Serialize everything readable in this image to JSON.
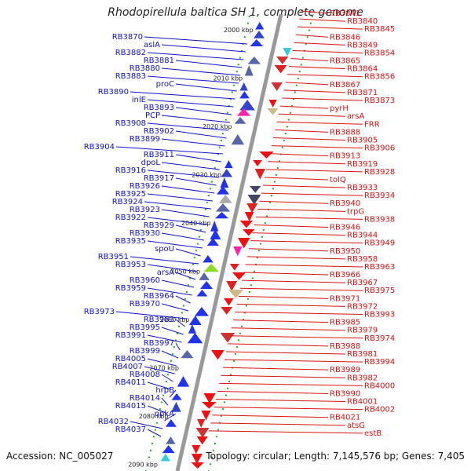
{
  "title": "Rhodopirellula baltica SH 1, complete genome",
  "footer": {
    "accession": "Accession: NC_005027",
    "info": "Topology: circular; Length: 7,145,576 bp; Genes: 7,405"
  },
  "colors": {
    "left_labels": "#1111cc",
    "right_labels": "#dd1111",
    "axis": "#999999",
    "ticks": "#22aa22"
  },
  "kbp_ticks": [
    "2000 kbp",
    "2010 kbp",
    "2020 kbp",
    "2030 kbp",
    "2040 kbp",
    "2050 kbp",
    "2060 kbp",
    "2070 kbp",
    "2080 kbp",
    "2090 kbp"
  ],
  "left_labels": [
    "RB3870",
    "aslA",
    "RB3882",
    "RB3881",
    "RB3880",
    "RB3883",
    "proC",
    "RB3890",
    "inlE",
    "RB3893",
    "PCP",
    "RB3908",
    "RB3902",
    "RB3899",
    "RB3904",
    "RB3911",
    "dpoL",
    "RB3916",
    "RB3917",
    "RB3926",
    "RB3925",
    "RB3924",
    "RB3923",
    "RB3922",
    "RB3929",
    "RB3930",
    "RB3935",
    "spoU",
    "RB3951",
    "RB3953",
    "arsA",
    "RB3960",
    "RB3959",
    "RB3964",
    "RB3970",
    "RB3973",
    "RB3983",
    "RB3995",
    "RB3991",
    "RB3997",
    "RB3999",
    "RB4005",
    "RB4007",
    "RB4008",
    "RB4011",
    "hrpB",
    "RB4014",
    "RB4015",
    "ppkA",
    "RB4032",
    "RB4037"
  ],
  "right_labels": [
    "RB3841",
    "RB3840",
    "RB3845",
    "RB3846",
    "RB3849",
    "RB3854",
    "RB3865",
    "RB3864",
    "RB3856",
    "RB3867",
    "RB3871",
    "RB3873",
    "pyrH",
    "arsA",
    "FRR",
    "RB3888",
    "RB3905",
    "RB3906",
    "RB3913",
    "RB3919",
    "RB3928",
    "tolQ",
    "RB3933",
    "RB3934",
    "RB3940",
    "trpG",
    "RB3938",
    "RB3946",
    "RB3944",
    "RB3949",
    "RB3950",
    "RB3958",
    "RB3963",
    "RB3966",
    "RB3967",
    "RB3975",
    "RB3971",
    "RB3972",
    "RB3993",
    "RB3985",
    "RB3979",
    "RB3974",
    "RB3988",
    "RB3981",
    "RB3994",
    "RB3989",
    "RB3982",
    "RB4000",
    "RB3990",
    "RB4001",
    "RB4002",
    "RB4021",
    "atsG",
    "estB"
  ]
}
